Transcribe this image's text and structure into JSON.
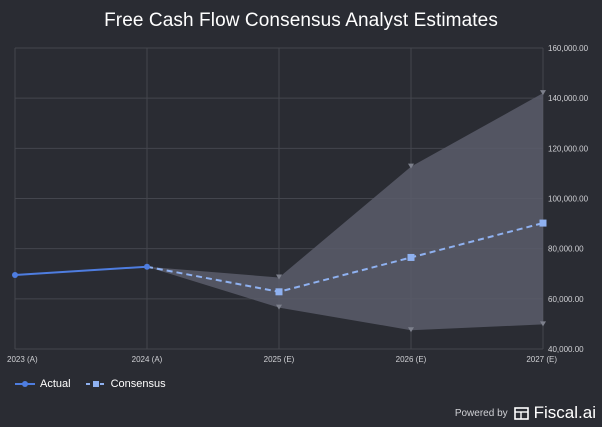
{
  "chart_data": {
    "type": "line",
    "title": "Free Cash Flow Consensus Analyst Estimates",
    "categories": [
      "2023 (A)",
      "2024 (A)",
      "2025 (E)",
      "2026 (E)",
      "2027 (E)"
    ],
    "ylim": [
      40000,
      160000
    ],
    "yticks": [
      "40,000.00",
      "60,000.00",
      "80,000.00",
      "100,000.00",
      "120,000.00",
      "140,000.00",
      "160,000.00"
    ],
    "ytick_values": [
      40000,
      60000,
      80000,
      100000,
      120000,
      140000,
      160000
    ],
    "grid": true,
    "legend_position": "bottom-left",
    "series": [
      {
        "name": "Actual",
        "style": "solid",
        "marker": "circle",
        "values": [
          69500,
          72800,
          null,
          null,
          null
        ]
      },
      {
        "name": "Consensus",
        "style": "dashed",
        "marker": "square",
        "values": [
          null,
          72800,
          62800,
          76500,
          90200
        ]
      }
    ],
    "range": {
      "high": [
        null,
        72800,
        68500,
        112700,
        142000
      ],
      "low": [
        null,
        72800,
        56500,
        47500,
        49800
      ]
    },
    "colors": {
      "background": "#2a2c33",
      "grid": "#44464e",
      "actual": "#4e7de0",
      "consensus": "#8fb1f0",
      "band": "#5a5d6b",
      "range_marker": "#7d808c"
    }
  },
  "legend": {
    "actual_label": "Actual",
    "consensus_label": "Consensus"
  },
  "footer": {
    "powered_by": "Powered by",
    "brand": "Fiscal.ai"
  }
}
